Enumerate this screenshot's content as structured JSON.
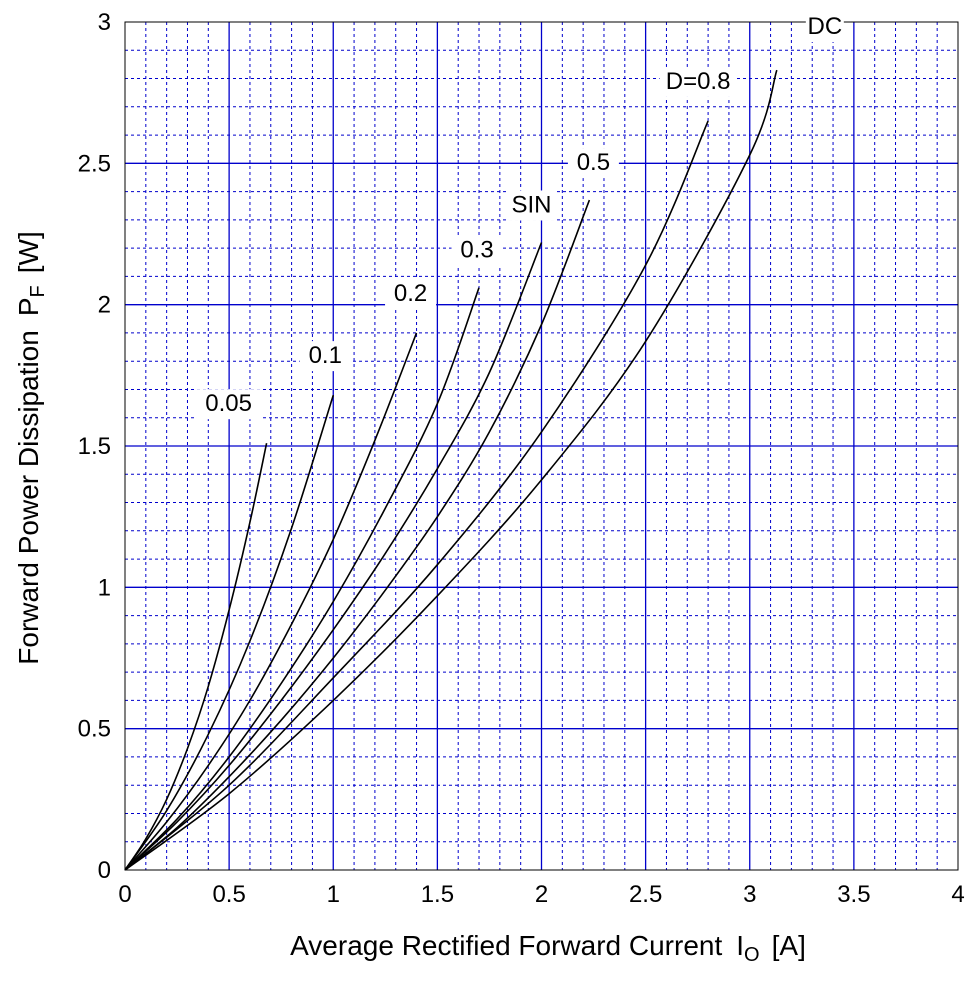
{
  "chart_data": {
    "type": "line",
    "xlabel": "Average Rectified Forward Current",
    "xlabel_symbol": "I",
    "xlabel_sub": "O",
    "xlabel_unit": "[A]",
    "ylabel": "Forward Power Dissipation",
    "ylabel_symbol": "P",
    "ylabel_sub": "F",
    "ylabel_unit": "[W]",
    "xlim": [
      0,
      4
    ],
    "ylim": [
      0,
      3
    ],
    "x_ticks": [
      0,
      0.5,
      1,
      1.5,
      2,
      2.5,
      3,
      3.5,
      4
    ],
    "x_tick_labels": [
      "0",
      "0.5",
      "1",
      "1.5",
      "2",
      "2.5",
      "3",
      "3.5",
      "4"
    ],
    "y_ticks": [
      0,
      0.5,
      1,
      1.5,
      2,
      2.5,
      3
    ],
    "y_tick_labels": [
      "0",
      "0.5",
      "1",
      "1.5",
      "2",
      "2.5",
      "3"
    ],
    "grid": true,
    "grid_color": "#0000cc",
    "line_color": "#000000",
    "series": [
      {
        "name": "0.05",
        "x": [
          0,
          0.1,
          0.2,
          0.3,
          0.4,
          0.5,
          0.6,
          0.68
        ],
        "y": [
          0,
          0.11,
          0.25,
          0.43,
          0.65,
          0.92,
          1.23,
          1.51
        ]
      },
      {
        "name": "0.1",
        "x": [
          0,
          0.2,
          0.4,
          0.6,
          0.8,
          1.0
        ],
        "y": [
          0,
          0.21,
          0.48,
          0.81,
          1.21,
          1.68
        ]
      },
      {
        "name": "0.2",
        "x": [
          0,
          0.2,
          0.4,
          0.6,
          0.8,
          1.0,
          1.2,
          1.4
        ],
        "y": [
          0,
          0.17,
          0.37,
          0.6,
          0.87,
          1.17,
          1.52,
          1.9
        ]
      },
      {
        "name": "0.3",
        "x": [
          0,
          0.25,
          0.5,
          0.75,
          1.0,
          1.25,
          1.5,
          1.7
        ],
        "y": [
          0,
          0.18,
          0.4,
          0.66,
          0.95,
          1.28,
          1.65,
          2.06
        ]
      },
      {
        "name": "SIN",
        "x": [
          0,
          0.25,
          0.5,
          0.75,
          1.0,
          1.25,
          1.5,
          1.75,
          2.0
        ],
        "y": [
          0,
          0.17,
          0.37,
          0.6,
          0.85,
          1.12,
          1.42,
          1.76,
          2.22
        ]
      },
      {
        "name": "0.5",
        "x": [
          0,
          0.25,
          0.5,
          0.75,
          1.0,
          1.25,
          1.5,
          1.75,
          2.0,
          2.23
        ],
        "y": [
          0,
          0.15,
          0.33,
          0.53,
          0.75,
          0.99,
          1.25,
          1.55,
          1.93,
          2.37
        ]
      },
      {
        "name": "D=0.8",
        "x": [
          0,
          0.5,
          1.0,
          1.5,
          2.0,
          2.5,
          2.8
        ],
        "y": [
          0,
          0.3,
          0.68,
          1.08,
          1.55,
          2.14,
          2.65
        ]
      },
      {
        "name": "DC",
        "x": [
          0,
          0.5,
          1.0,
          1.5,
          2.0,
          2.5,
          3.0,
          3.13
        ],
        "y": [
          0,
          0.27,
          0.6,
          0.97,
          1.38,
          1.87,
          2.53,
          2.83
        ]
      }
    ],
    "curve_labels": [
      {
        "text": "0.05",
        "series": "0.05"
      },
      {
        "text": "0.1",
        "series": "0.1"
      },
      {
        "text": "0.2",
        "series": "0.2"
      },
      {
        "text": "0.3",
        "series": "0.3"
      },
      {
        "text": "SIN",
        "series": "SIN"
      },
      {
        "text": "0.5",
        "series": "0.5"
      },
      {
        "text": "D=0.8",
        "series": "D=0.8"
      },
      {
        "text": "DC",
        "series": "DC"
      }
    ]
  }
}
